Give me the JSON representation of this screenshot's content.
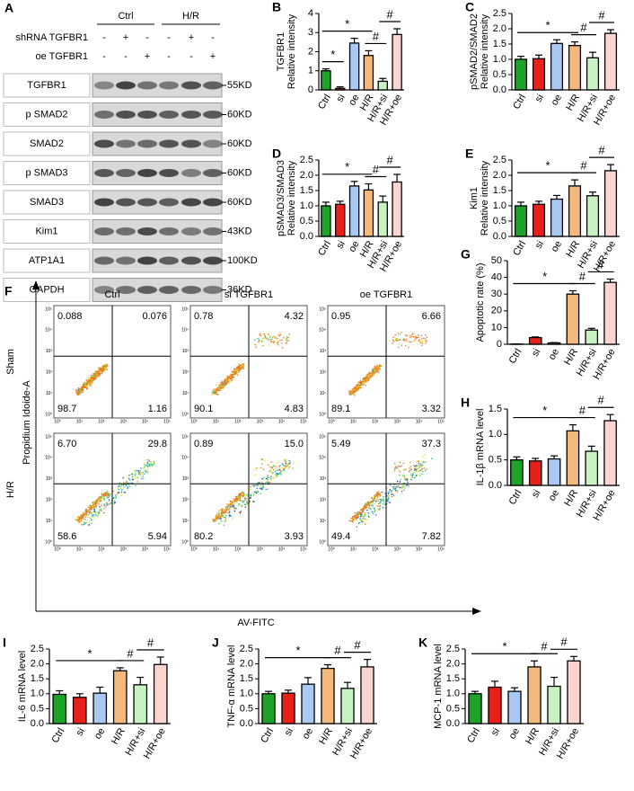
{
  "blot": {
    "panel": "A",
    "groups": [
      "Ctrl",
      "H/R"
    ],
    "treatments": [
      {
        "name": "shRNA TGFBR1",
        "signs": [
          "-",
          "+",
          "-",
          "-",
          "+",
          "-"
        ]
      },
      {
        "name": "oe TGFBR1",
        "signs": [
          "-",
          "-",
          "+",
          "-",
          "-",
          "+"
        ]
      }
    ],
    "rows": [
      {
        "protein": "TGFBR1",
        "size": "55KD"
      },
      {
        "protein": "p SMAD2",
        "size": "60KD"
      },
      {
        "protein": "SMAD2",
        "size": "60KD"
      },
      {
        "protein": "p SMAD3",
        "size": "60KD"
      },
      {
        "protein": "SMAD3",
        "size": "60KD"
      },
      {
        "protein": "Kim1",
        "size": "43KD"
      },
      {
        "protein": "ATP1A1",
        "size": "100KD"
      },
      {
        "protein": "GAPDH",
        "size": "36KD"
      }
    ]
  },
  "flow": {
    "panel": "F",
    "columns": [
      "Ctrl",
      "si TGFBR1",
      "oe TGFBR1"
    ],
    "rows": [
      "Sham",
      "H/R"
    ],
    "ylabel": "Propidium Idoide-A",
    "xlabel": "AV-FITC",
    "axis_ticks": [
      "10⁰",
      "10¹",
      "10²",
      "10³",
      "10⁴",
      "10⁵"
    ],
    "quadrants": [
      [
        [
          "0.088",
          "0.076",
          "98.7",
          "1.16"
        ],
        [
          "0.78",
          "4.32",
          "90.1",
          "4.83"
        ],
        [
          "0.95",
          "6.66",
          "89.1",
          "3.32"
        ]
      ],
      [
        [
          "6.70",
          "29.8",
          "58.6",
          "5.94"
        ],
        [
          "0.89",
          "15.0",
          "80.2",
          "3.93"
        ],
        [
          "5.49",
          "37.3",
          "49.4",
          "7.82"
        ]
      ]
    ]
  },
  "chart_data": [
    {
      "type": "bar",
      "panel": "B",
      "ylabel": [
        "TGFBR1",
        "Relative intensity"
      ],
      "categories": [
        "Ctrl",
        "si",
        "oe",
        "H/R",
        "H/R+si",
        "H/R+oe"
      ],
      "colors": [
        "#1fa22a",
        "#e8201c",
        "#a9c8f2",
        "#f3b97c",
        "#c9f2c2",
        "#fbd6d1"
      ],
      "values": [
        1.0,
        0.08,
        2.45,
        1.8,
        0.45,
        2.9
      ],
      "errors": [
        0.1,
        0.08,
        0.25,
        0.25,
        0.15,
        0.3
      ],
      "ylim": [
        0,
        4
      ],
      "yticks": [
        0,
        1,
        2,
        3,
        4
      ],
      "annotations": [
        {
          "text": "*",
          "from": 0,
          "to": 1
        },
        {
          "text": "*",
          "from": 0,
          "to": 3
        },
        {
          "text": "#",
          "from": 3,
          "to": 4
        },
        {
          "text": "#",
          "from": 4,
          "to": 5
        }
      ]
    },
    {
      "type": "bar",
      "panel": "C",
      "ylabel": [
        "pSMAD2/SMAD2",
        "Relative intensity"
      ],
      "categories": [
        "Ctrl",
        "si",
        "oe",
        "H/R",
        "H/R+si",
        "H/R+oe"
      ],
      "colors": [
        "#1fa22a",
        "#e8201c",
        "#a9c8f2",
        "#f3b97c",
        "#c9f2c2",
        "#fbd6d1"
      ],
      "values": [
        1.0,
        1.02,
        1.52,
        1.45,
        1.05,
        1.85
      ],
      "errors": [
        0.1,
        0.12,
        0.12,
        0.12,
        0.18,
        0.12
      ],
      "ylim": [
        0,
        2.5
      ],
      "yticks": [
        {
          "value": 0,
          "label": "0.0"
        },
        0.5,
        {
          "value": 1,
          "label": "1.0"
        },
        1.5,
        {
          "value": 2,
          "label": "2.0"
        },
        2.5
      ],
      "annotations": [
        {
          "text": "*",
          "from": 0,
          "to": 3
        },
        {
          "text": "#",
          "from": 3,
          "to": 4
        },
        {
          "text": "#",
          "from": 4,
          "to": 5
        }
      ]
    },
    {
      "type": "bar",
      "panel": "D",
      "ylabel": [
        "pSMAD3/SMAD3",
        "Relative intensity"
      ],
      "categories": [
        "Ctrl",
        "si",
        "oe",
        "H/R",
        "H/R+si",
        "H/R+oe"
      ],
      "colors": [
        "#1fa22a",
        "#e8201c",
        "#a9c8f2",
        "#f3b97c",
        "#c9f2c2",
        "#fbd6d1"
      ],
      "values": [
        1.0,
        1.05,
        1.65,
        1.52,
        1.12,
        1.78
      ],
      "errors": [
        0.12,
        0.1,
        0.15,
        0.2,
        0.2,
        0.25
      ],
      "ylim": [
        0,
        2.5
      ],
      "yticks": [
        {
          "value": 0,
          "label": "0.0"
        },
        0.5,
        {
          "value": 1,
          "label": "1.0"
        },
        1.5,
        {
          "value": 2,
          "label": "2.0"
        },
        2.5
      ],
      "annotations": [
        {
          "text": "*",
          "from": 0,
          "to": 3
        },
        {
          "text": "#",
          "from": 3,
          "to": 4
        },
        {
          "text": "#",
          "from": 4,
          "to": 5
        }
      ]
    },
    {
      "type": "bar",
      "panel": "E",
      "ylabel": [
        "Kim1",
        "Relative intensity"
      ],
      "categories": [
        "Ctrl",
        "si",
        "oe",
        "H/R",
        "H/R+si",
        "H/R+oe"
      ],
      "colors": [
        "#1fa22a",
        "#e8201c",
        "#a9c8f2",
        "#f3b97c",
        "#c9f2c2",
        "#fbd6d1"
      ],
      "values": [
        1.0,
        1.05,
        1.22,
        1.65,
        1.33,
        2.15
      ],
      "errors": [
        0.12,
        0.1,
        0.12,
        0.2,
        0.12,
        0.2
      ],
      "ylim": [
        0,
        2.5
      ],
      "yticks": [
        {
          "value": 0,
          "label": "0.0"
        },
        0.5,
        {
          "value": 1,
          "label": "1.0"
        },
        1.5,
        {
          "value": 2,
          "label": "2.0"
        },
        2.5
      ],
      "annotations": [
        {
          "text": "*",
          "from": 0,
          "to": 3
        },
        {
          "text": "#",
          "from": 3,
          "to": 4
        },
        {
          "text": "#",
          "from": 4,
          "to": 5
        }
      ]
    },
    {
      "type": "bar",
      "panel": "G",
      "ylabel": [
        "Apoptotic rate (%)"
      ],
      "categories": [
        "Ctrl",
        "si",
        "oe",
        "H/R",
        "H/R+si",
        "H/R+oe"
      ],
      "colors": [
        "#1fa22a",
        "#e8201c",
        "#a9c8f2",
        "#f3b97c",
        "#c9f2c2",
        "#fbd6d1"
      ],
      "values": [
        0.1,
        4.0,
        0.8,
        30,
        8.5,
        37
      ],
      "errors": [
        0.1,
        0.4,
        0.2,
        2,
        1,
        2
      ],
      "ylim": [
        0,
        50
      ],
      "yticks": [
        0,
        10,
        20,
        30,
        40,
        50
      ],
      "annotations": [
        {
          "text": "*",
          "from": 0,
          "to": 3
        },
        {
          "text": "#",
          "from": 3,
          "to": 4
        },
        {
          "text": "#",
          "from": 4,
          "to": 5
        }
      ]
    },
    {
      "type": "bar",
      "panel": "H",
      "ylabel": [
        "IL-1β mRNA level"
      ],
      "categories": [
        "Ctrl",
        "si",
        "oe",
        "H/R",
        "H/R+si",
        "H/R+oe"
      ],
      "colors": [
        "#1fa22a",
        "#e8201c",
        "#a9c8f2",
        "#f3b97c",
        "#c9f2c2",
        "#fbd6d1"
      ],
      "values": [
        0.5,
        0.48,
        0.52,
        1.07,
        0.67,
        1.27
      ],
      "errors": [
        0.06,
        0.05,
        0.06,
        0.12,
        0.1,
        0.12
      ],
      "ylim": [
        0,
        1.5
      ],
      "yticks": [
        {
          "value": 0,
          "label": "0.0"
        },
        0.5,
        {
          "value": 1,
          "label": "1.0"
        },
        1.5
      ],
      "annotations": [
        {
          "text": "*",
          "from": 0,
          "to": 3
        },
        {
          "text": "#",
          "from": 3,
          "to": 4
        },
        {
          "text": "#",
          "from": 4,
          "to": 5
        }
      ]
    },
    {
      "type": "bar",
      "panel": "I",
      "ylabel": [
        "IL-6 mRNA level"
      ],
      "categories": [
        "Ctrl",
        "si",
        "oe",
        "H/R",
        "H/R+si",
        "H/R+oe"
      ],
      "colors": [
        "#1fa22a",
        "#e8201c",
        "#a9c8f2",
        "#f3b97c",
        "#c9f2c2",
        "#fbd6d1"
      ],
      "values": [
        0.98,
        0.88,
        1.02,
        1.77,
        1.3,
        1.98
      ],
      "errors": [
        0.12,
        0.12,
        0.2,
        0.1,
        0.25,
        0.25
      ],
      "ylim": [
        0,
        2.5
      ],
      "yticks": [
        {
          "value": 0,
          "label": "0.0"
        },
        0.5,
        {
          "value": 1,
          "label": "1.0"
        },
        1.5,
        {
          "value": 2,
          "label": "2.0"
        },
        2.5
      ],
      "annotations": [
        {
          "text": "*",
          "from": 0,
          "to": 3
        },
        {
          "text": "#",
          "from": 3,
          "to": 4
        },
        {
          "text": "#",
          "from": 4,
          "to": 5
        }
      ]
    },
    {
      "type": "bar",
      "panel": "J",
      "ylabel": [
        "TNF-α mRNA level"
      ],
      "categories": [
        "Ctrl",
        "si",
        "oe",
        "H/R",
        "H/R+si",
        "H/R+oe"
      ],
      "colors": [
        "#1fa22a",
        "#e8201c",
        "#a9c8f2",
        "#f3b97c",
        "#c9f2c2",
        "#fbd6d1"
      ],
      "values": [
        1.0,
        1.02,
        1.32,
        1.85,
        1.18,
        1.9
      ],
      "errors": [
        0.08,
        0.1,
        0.22,
        0.12,
        0.2,
        0.25
      ],
      "ylim": [
        0,
        2.5
      ],
      "yticks": [
        {
          "value": 0,
          "label": "0.0"
        },
        0.5,
        {
          "value": 1,
          "label": "1.0"
        },
        1.5,
        {
          "value": 2,
          "label": "2.0"
        },
        2.5
      ],
      "annotations": [
        {
          "text": "*",
          "from": 0,
          "to": 3
        },
        {
          "text": "#",
          "from": 3,
          "to": 4
        },
        {
          "text": "#",
          "from": 4,
          "to": 5
        }
      ]
    },
    {
      "type": "bar",
      "panel": "K",
      "ylabel": [
        "MCP-1 mRNA level"
      ],
      "categories": [
        "Ctrl",
        "si",
        "oe",
        "H/R",
        "H/R+si",
        "H/R+oe"
      ],
      "colors": [
        "#1fa22a",
        "#e8201c",
        "#a9c8f2",
        "#f3b97c",
        "#c9f2c2",
        "#fbd6d1"
      ],
      "values": [
        1.0,
        1.22,
        1.08,
        1.9,
        1.25,
        2.1
      ],
      "errors": [
        0.08,
        0.2,
        0.12,
        0.2,
        0.3,
        0.15
      ],
      "ylim": [
        0,
        2.5
      ],
      "yticks": [
        {
          "value": 0,
          "label": "0.0"
        },
        0.5,
        {
          "value": 1,
          "label": "1.0"
        },
        1.5,
        {
          "value": 2,
          "label": "2.0"
        },
        2.5
      ],
      "annotations": [
        {
          "text": "*",
          "from": 0,
          "to": 3
        },
        {
          "text": "#",
          "from": 3,
          "to": 4
        },
        {
          "text": "#",
          "from": 4,
          "to": 5
        }
      ]
    }
  ]
}
